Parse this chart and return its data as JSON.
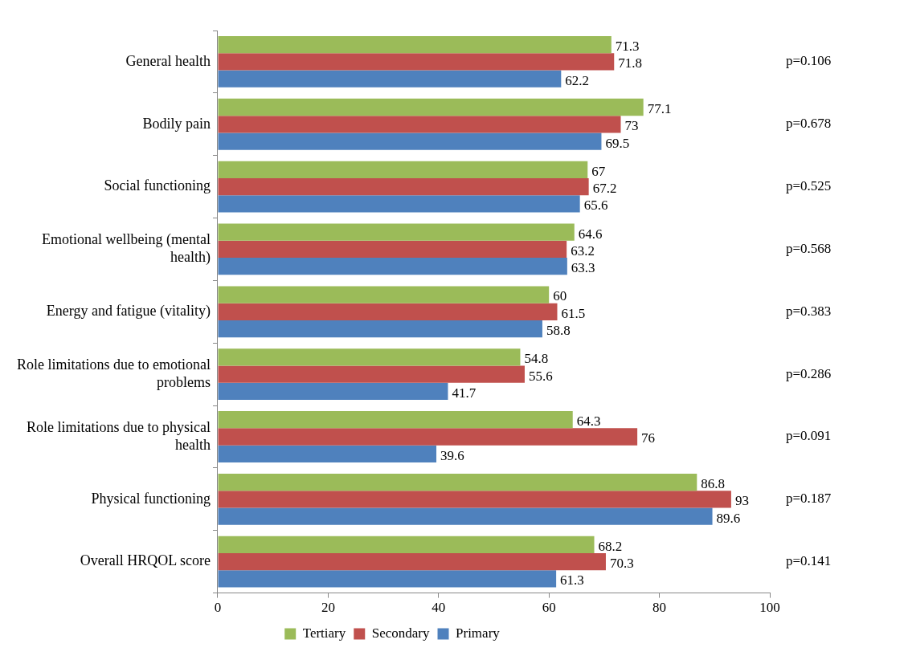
{
  "chart_data": {
    "type": "bar",
    "orientation": "horizontal",
    "categories": [
      "General health",
      "Bodily pain",
      "Social functioning",
      "Emotional wellbeing (mental health)",
      "Energy and fatigue (vitality)",
      "Role limitations due to emotional problems",
      "Role limitations due to physical health",
      "Physical functioning",
      "Overall HRQOL score"
    ],
    "series": [
      {
        "name": "Tertiary",
        "color": "#9bbb59",
        "values": [
          71.3,
          77.1,
          67,
          64.6,
          60,
          54.8,
          64.3,
          86.8,
          68.2
        ]
      },
      {
        "name": "Secondary",
        "color": "#c0504d",
        "values": [
          71.8,
          73,
          67.2,
          63.2,
          61.5,
          55.6,
          76,
          93,
          70.3
        ]
      },
      {
        "name": "Primary",
        "color": "#4f81bd",
        "values": [
          62.2,
          69.5,
          65.6,
          63.3,
          58.8,
          41.7,
          39.6,
          89.6,
          61.3
        ]
      }
    ],
    "xlim": [
      0,
      100
    ],
    "xticks": [
      0,
      20,
      40,
      60,
      80,
      100
    ],
    "grid": false,
    "legend": "bottom",
    "data_labels": true,
    "annotations": [
      "p=0.106",
      "p=0.678",
      "p=0.525",
      "p=0.568",
      "p=0.383",
      "p=0.286",
      "p=0.091",
      "p=0.187",
      "p=0.141"
    ]
  }
}
